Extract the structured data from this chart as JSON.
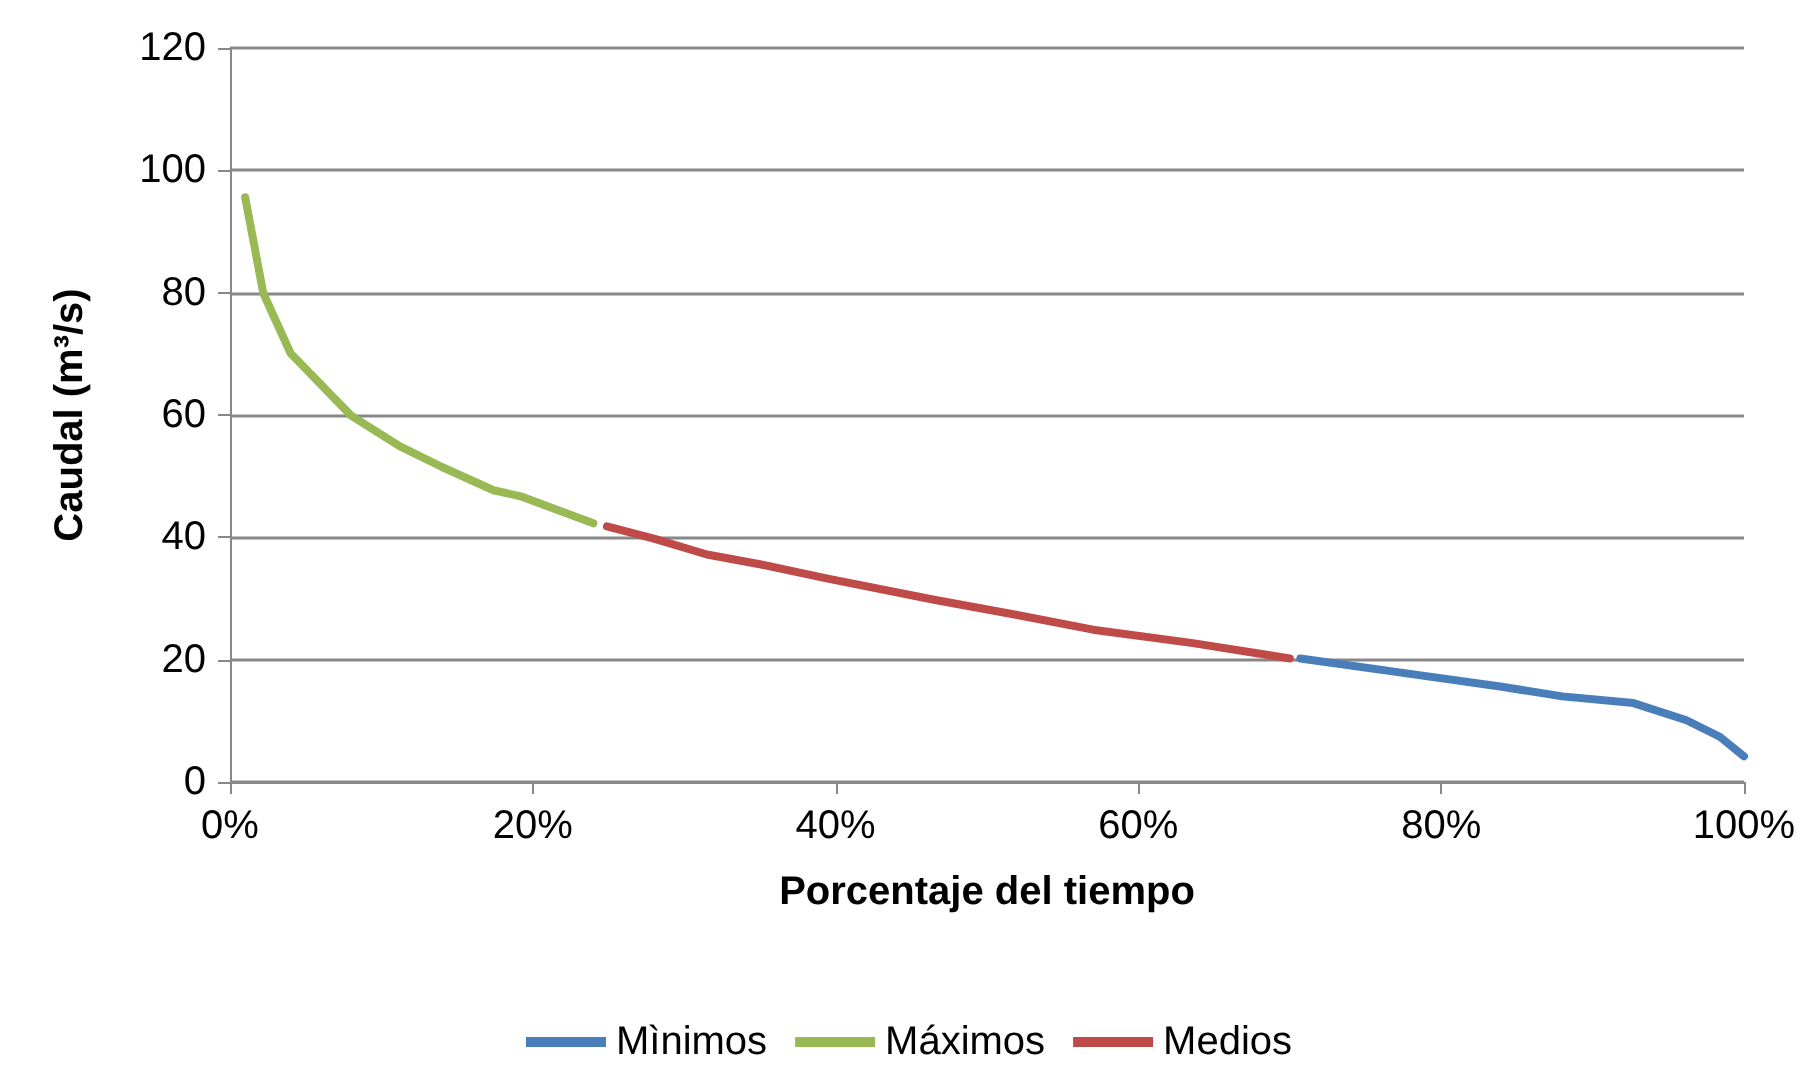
{
  "chart_data": {
    "type": "line",
    "xlabel": "Porcentaje del tiempo",
    "ylabel": "Caudal (m³/s)",
    "xlim": [
      0,
      100
    ],
    "xticks": [
      {
        "value": 0,
        "label": "0%"
      },
      {
        "value": 20,
        "label": "20%"
      },
      {
        "value": 40,
        "label": "40%"
      },
      {
        "value": 60,
        "label": "60%"
      },
      {
        "value": 80,
        "label": "80%"
      },
      {
        "value": 100,
        "label": "100%"
      }
    ],
    "ylim": [
      0,
      120
    ],
    "yticks": [
      0,
      20,
      40,
      60,
      80,
      100,
      120
    ],
    "grid": "y",
    "legend": "bottom",
    "marker": "none",
    "line_style": "solid",
    "series": [
      {
        "name": "Mìnimos",
        "color": "#4a7ebb",
        "x": [
          70.7,
          77,
          83.9,
          88,
          92.7,
          96.2,
          98.4,
          100
        ],
        "values": [
          20.2,
          18,
          15.6,
          14,
          12.9,
          10.1,
          7.4,
          4.2
        ]
      },
      {
        "name": "Máximos",
        "color": "#98b954",
        "x": [
          1,
          2.2,
          4,
          8,
          11.2,
          14,
          17.4,
          19.2,
          24
        ],
        "values": [
          95.6,
          79.9,
          70.1,
          59.9,
          54.9,
          51.5,
          47.7,
          46.7,
          42.3
        ]
      },
      {
        "name": "Medios",
        "color": "#be4b48",
        "x": [
          24.9,
          28,
          31.5,
          35,
          39.4,
          46.5,
          52,
          57,
          63.6,
          70
        ],
        "values": [
          41.8,
          39.8,
          37.2,
          35.6,
          33.3,
          29.8,
          27.3,
          24.9,
          22.7,
          20.2
        ]
      }
    ]
  }
}
